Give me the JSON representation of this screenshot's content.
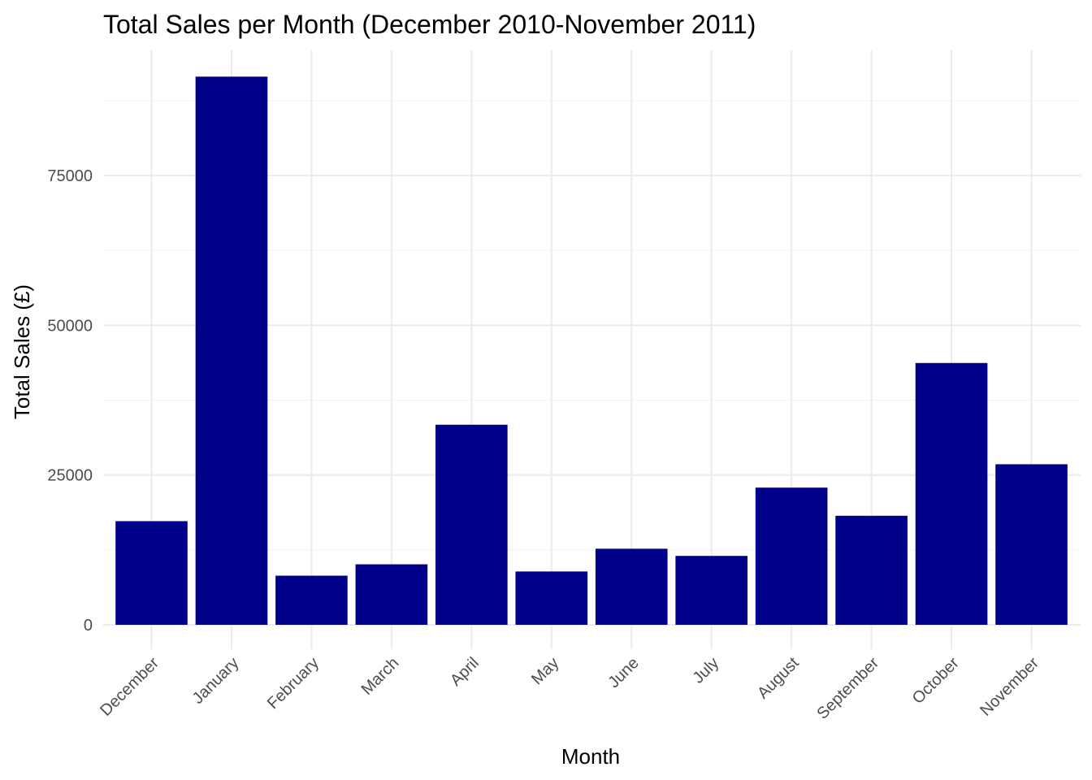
{
  "chart_data": {
    "type": "bar",
    "title": "Total Sales per Month (December 2010-November 2011)",
    "xlabel": "Month",
    "ylabel": "Total Sales (£)",
    "categories": [
      "December",
      "January",
      "February",
      "March",
      "April",
      "May",
      "June",
      "July",
      "August",
      "September",
      "October",
      "November"
    ],
    "values": [
      17300,
      91500,
      8200,
      10100,
      33400,
      8900,
      12700,
      11500,
      22900,
      18200,
      43700,
      26800
    ],
    "ylim": [
      0,
      96000
    ],
    "yticks": [
      0,
      25000,
      50000,
      75000
    ],
    "ytick_labels": [
      "0",
      "25000",
      "50000",
      "75000"
    ],
    "bar_color": "#00008B",
    "grid": true,
    "legend": "none"
  }
}
